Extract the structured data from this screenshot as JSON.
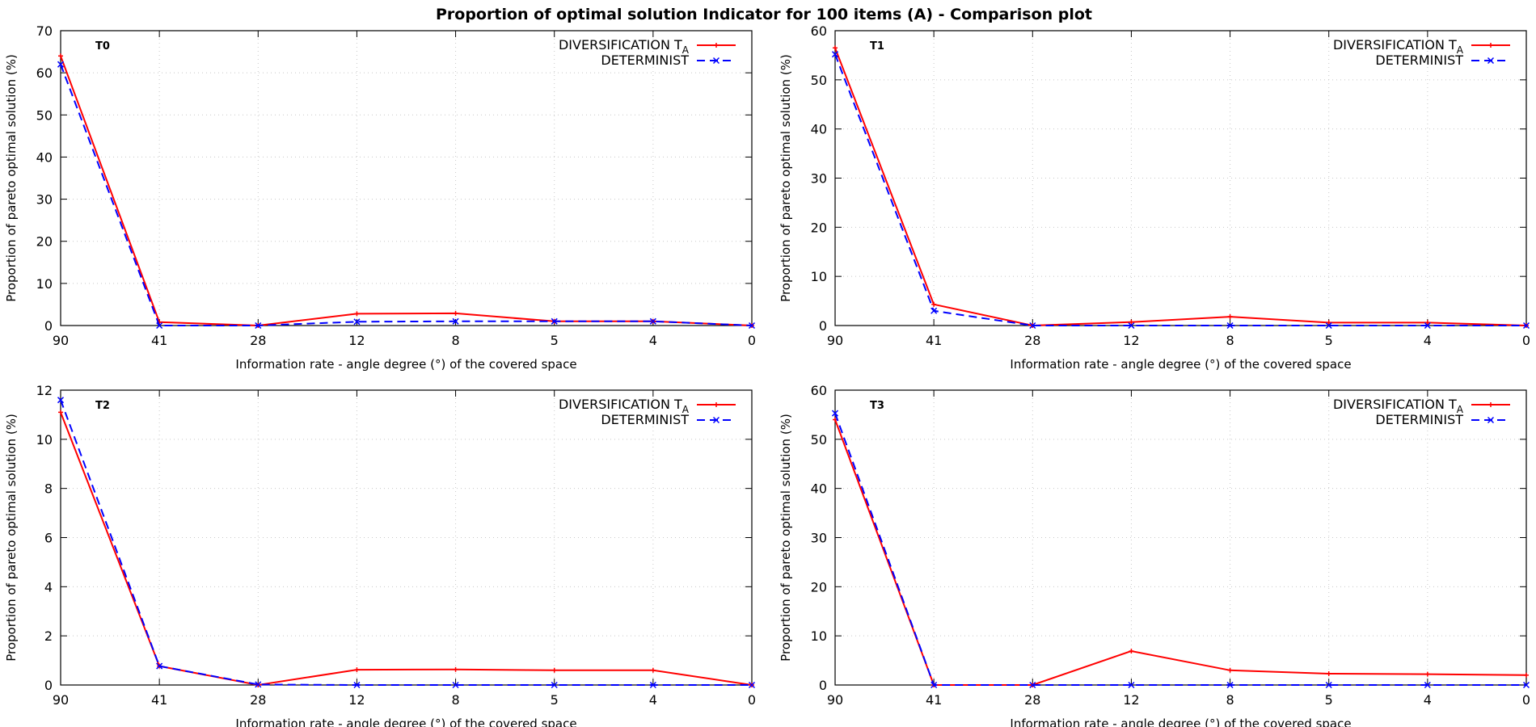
{
  "figure": {
    "title": "Proportion of optimal solution Indicator for 100 items (A)  - Comparison plot"
  },
  "colors": {
    "diversification": "#ff0000",
    "determinist": "#0000ff"
  },
  "chart_data": [
    {
      "type": "line",
      "panel_label": "T0",
      "categories": [
        "90",
        "41",
        "28",
        "12",
        "8",
        "5",
        "4",
        "0"
      ],
      "xlabel": "Information rate - angle degree (°)  of the covered space",
      "ylabel": "Proportion of pareto optimal solution (%)",
      "ylim": [
        0,
        70
      ],
      "yticks": [
        0,
        10,
        20,
        30,
        40,
        50,
        60,
        70
      ],
      "grid": true,
      "legend_position": "top-right",
      "series": [
        {
          "name": "DIVERSIFICATION T",
          "name_subscript": "A",
          "style": "solid",
          "marker": "plus",
          "color": "#ff0000",
          "values": [
            64,
            0.8,
            0,
            2.8,
            2.9,
            1,
            1,
            0
          ]
        },
        {
          "name": "DETERMINIST",
          "name_subscript": "",
          "style": "dashed",
          "marker": "x",
          "color": "#0000ff",
          "values": [
            62,
            0,
            0,
            0.9,
            1,
            1,
            1,
            0
          ]
        }
      ]
    },
    {
      "type": "line",
      "panel_label": "T1",
      "categories": [
        "90",
        "41",
        "28",
        "12",
        "8",
        "5",
        "4",
        "0"
      ],
      "xlabel": "Information rate - angle degree (°)  of the covered space",
      "ylabel": "Proportion of pareto optimal solution (%)",
      "ylim": [
        0,
        60
      ],
      "yticks": [
        0,
        10,
        20,
        30,
        40,
        50,
        60
      ],
      "grid": true,
      "legend_position": "top-right",
      "series": [
        {
          "name": "DIVERSIFICATION T",
          "name_subscript": "A",
          "style": "solid",
          "marker": "plus",
          "color": "#ff0000",
          "values": [
            56.5,
            4.3,
            0,
            0.7,
            1.8,
            0.6,
            0.6,
            0
          ]
        },
        {
          "name": "DETERMINIST",
          "name_subscript": "",
          "style": "dashed",
          "marker": "x",
          "color": "#0000ff",
          "values": [
            55.2,
            3,
            0,
            0,
            0,
            0,
            0,
            0
          ]
        }
      ]
    },
    {
      "type": "line",
      "panel_label": "T2",
      "categories": [
        "90",
        "41",
        "28",
        "12",
        "8",
        "5",
        "4",
        "0"
      ],
      "xlabel": "Information rate - angle degree (°)  of the covered space",
      "ylabel": "Proportion of pareto optimal solution (%)",
      "ylim": [
        0,
        12
      ],
      "yticks": [
        0,
        2,
        4,
        6,
        8,
        10,
        12
      ],
      "grid": true,
      "legend_position": "top-right",
      "series": [
        {
          "name": "DIVERSIFICATION T",
          "name_subscript": "A",
          "style": "solid",
          "marker": "plus",
          "color": "#ff0000",
          "values": [
            11.1,
            0.77,
            0,
            0.62,
            0.63,
            0.6,
            0.6,
            0
          ]
        },
        {
          "name": "DETERMINIST",
          "name_subscript": "",
          "style": "dashed",
          "marker": "x",
          "color": "#0000ff",
          "values": [
            11.6,
            0.77,
            0.02,
            0,
            0,
            0,
            0,
            0
          ]
        }
      ]
    },
    {
      "type": "line",
      "panel_label": "T3",
      "categories": [
        "90",
        "41",
        "28",
        "12",
        "8",
        "5",
        "4",
        "0"
      ],
      "xlabel": "Information rate - angle degree (°)  of the covered space",
      "ylabel": "Proportion of pareto optimal solution (%)",
      "ylim": [
        0,
        60
      ],
      "yticks": [
        0,
        10,
        20,
        30,
        40,
        50,
        60
      ],
      "grid": true,
      "legend_position": "top-right",
      "series": [
        {
          "name": "DIVERSIFICATION T",
          "name_subscript": "A",
          "style": "solid",
          "marker": "plus",
          "color": "#ff0000",
          "values": [
            54,
            0,
            0,
            6.9,
            3,
            2.3,
            2.2,
            2
          ]
        },
        {
          "name": "DETERMINIST",
          "name_subscript": "",
          "style": "dashed",
          "marker": "x",
          "color": "#0000ff",
          "values": [
            55.3,
            0,
            0,
            0,
            0,
            0,
            0,
            0
          ]
        }
      ]
    }
  ]
}
